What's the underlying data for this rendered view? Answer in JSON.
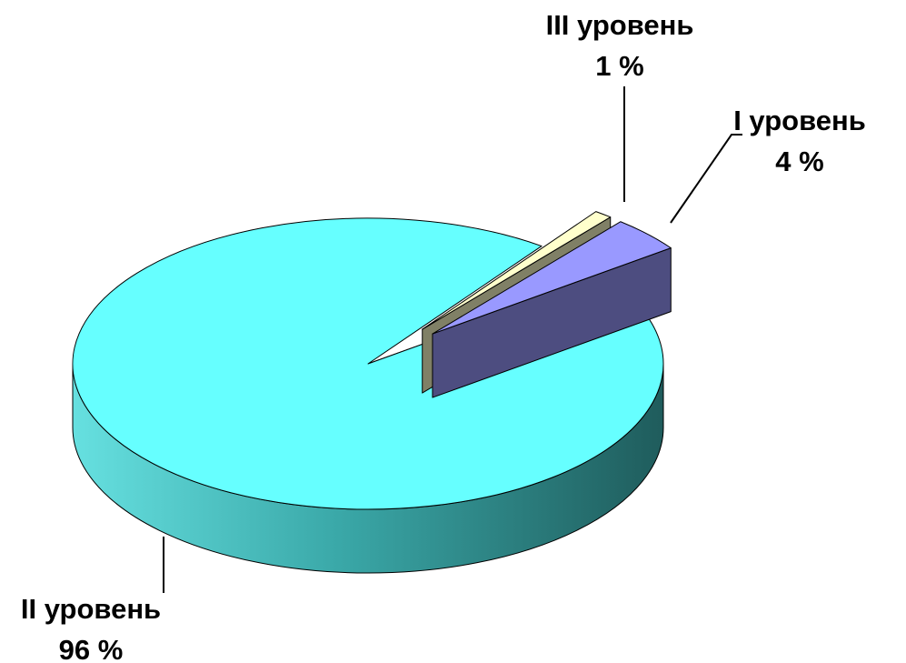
{
  "chart_data": {
    "type": "pie3d",
    "categories": [
      "I уровень",
      "II уровень",
      "III уровень"
    ],
    "values": [
      4,
      96,
      1
    ],
    "value_labels": [
      "4 %",
      "96 %",
      "1 %"
    ],
    "colors": [
      "#9999ff",
      "#66ffff",
      "#ffffcc"
    ],
    "exploded": [
      true,
      false,
      true
    ]
  }
}
